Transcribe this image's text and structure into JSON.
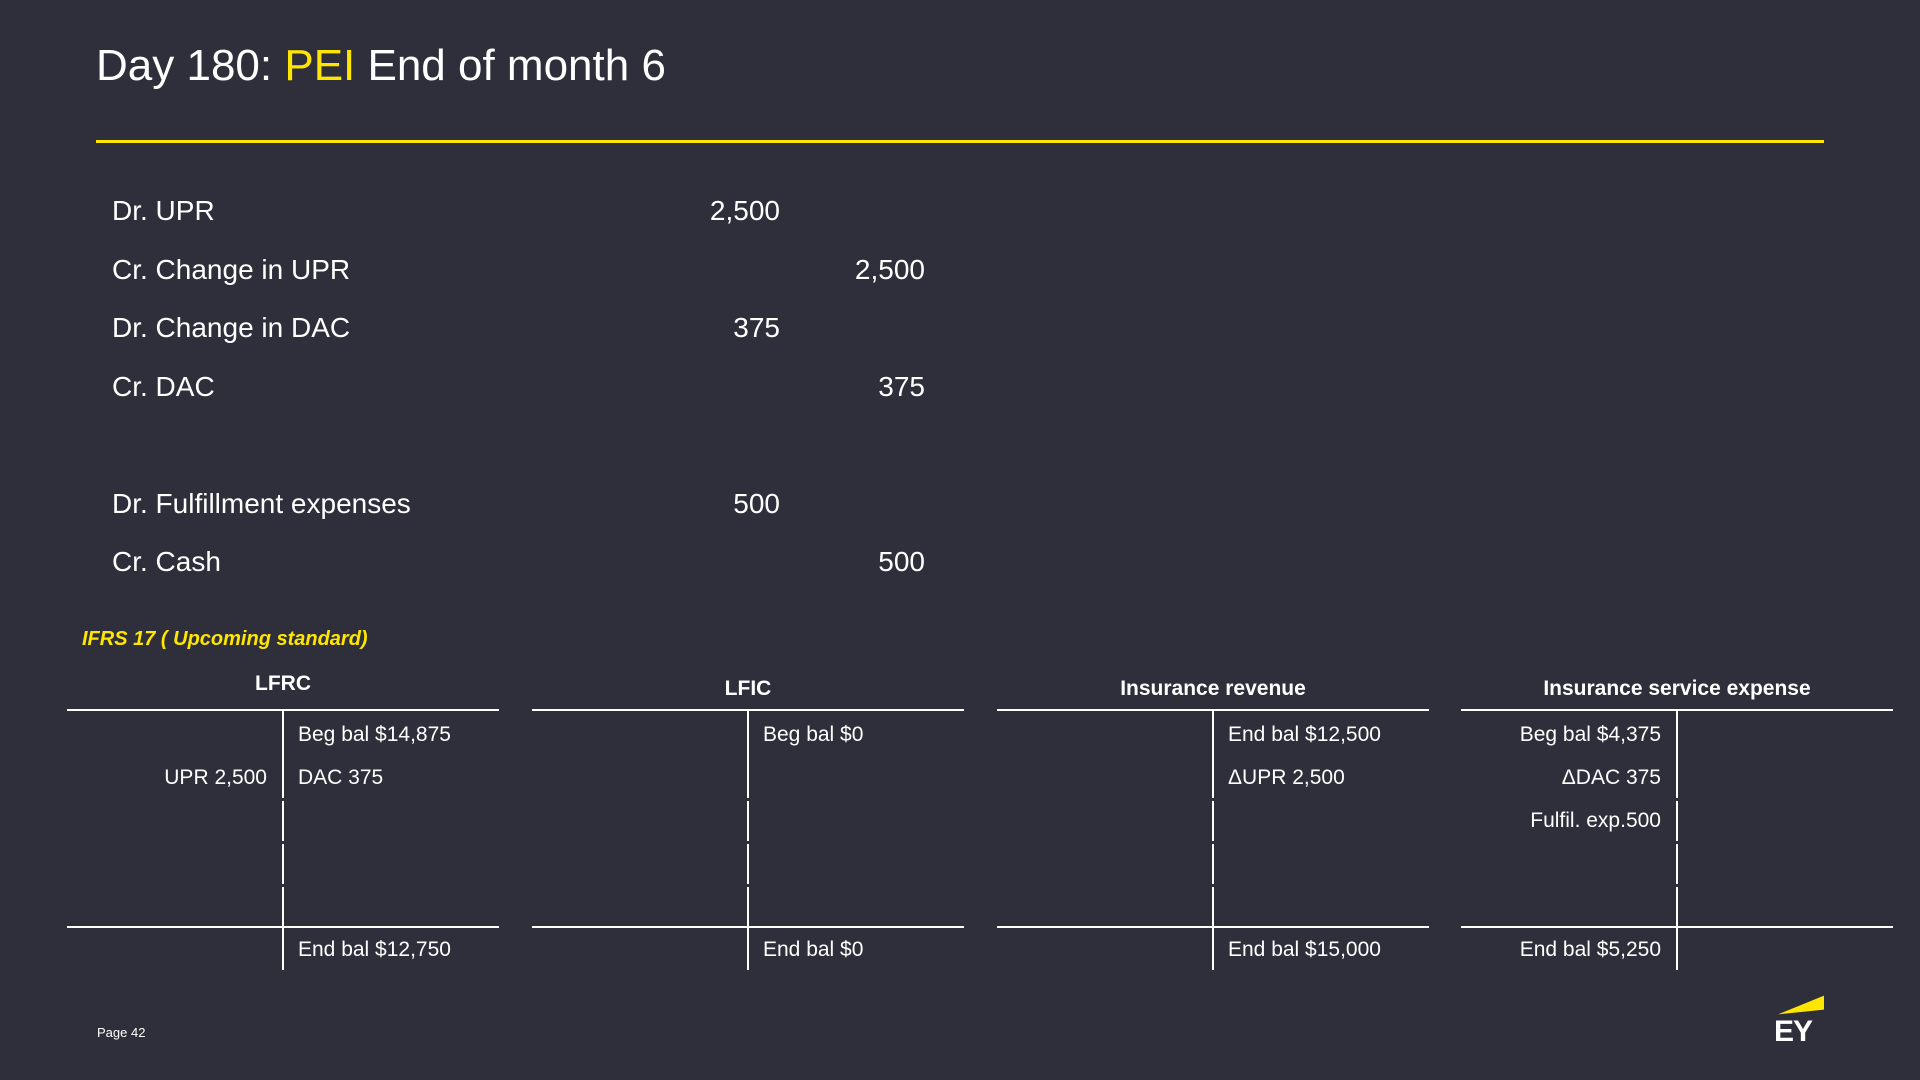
{
  "title": {
    "prefix": "Day 180: ",
    "highlight": "PEI",
    "suffix": " End of month 6"
  },
  "colors": {
    "background": "#2e2f3a",
    "accent": "#ffe600",
    "text": "#ffffff"
  },
  "entries": [
    {
      "label": "Dr. UPR",
      "debit": "2,500",
      "credit": ""
    },
    {
      "label": "Cr. Change in UPR",
      "debit": "",
      "credit": "2,500"
    },
    {
      "label": "Dr. Change in DAC",
      "debit": "375",
      "credit": ""
    },
    {
      "label": "Cr. DAC",
      "debit": "",
      "credit": "375"
    },
    {
      "label": "Dr. Fulfillment expenses",
      "debit": "500",
      "credit": ""
    },
    {
      "label": "Cr. Cash",
      "debit": "",
      "credit": "500"
    }
  ],
  "section_label": "IFRS 17 ( Upcoming standard)",
  "t_accounts": [
    {
      "name": "LFRC",
      "left": [
        "",
        "UPR 2,500",
        ""
      ],
      "right": [
        "Beg bal $14,875",
        "DAC 375",
        ""
      ],
      "end_left": "",
      "end_right": "End bal $12,750"
    },
    {
      "name": "LFIC",
      "left": [
        "",
        "",
        ""
      ],
      "right": [
        "Beg bal $0",
        "",
        ""
      ],
      "end_left": "",
      "end_right": "End bal $0"
    },
    {
      "name": "Insurance revenue",
      "left": [
        "",
        "",
        ""
      ],
      "right": [
        "End bal $12,500",
        "ΔUPR 2,500",
        ""
      ],
      "end_left": "",
      "end_right": "End bal $15,000"
    },
    {
      "name": "Insurance service expense",
      "left": [
        "Beg bal $4,375",
        "ΔDAC 375",
        "Fulfil. exp.500"
      ],
      "right": [
        "",
        "",
        ""
      ],
      "end_left": "End bal $5,250",
      "end_right": ""
    }
  ],
  "footer": {
    "page": "Page 42",
    "logo": "EY"
  }
}
